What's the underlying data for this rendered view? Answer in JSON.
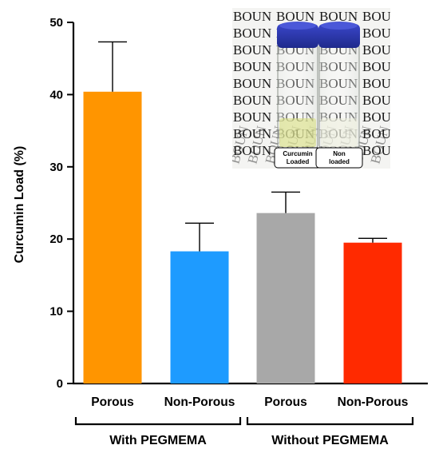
{
  "chart_data": {
    "type": "bar",
    "ylabel": "Curcumin Load (%)",
    "ylim": [
      0,
      50
    ],
    "yticks": [
      0,
      10,
      20,
      30,
      40,
      50
    ],
    "grid": false,
    "categories": [
      "Porous",
      "Non-Porous",
      "Porous",
      "Non-Porous"
    ],
    "values": [
      40.4,
      18.3,
      23.6,
      19.5
    ],
    "errors": [
      6.9,
      3.9,
      2.9,
      0.6
    ],
    "colors": [
      "#FF9500",
      "#1E9BFF",
      "#A8A8A8",
      "#FF2A00"
    ],
    "groups": [
      {
        "label": "With PEGMEMA",
        "members": [
          0,
          1
        ]
      },
      {
        "label": "Without PEGMEMA",
        "members": [
          2,
          3
        ]
      }
    ]
  },
  "inset": {
    "background_text": "BOUN",
    "vial_labels": [
      [
        "Curcumin",
        "Loaded"
      ],
      [
        "Non",
        "loaded"
      ]
    ]
  }
}
